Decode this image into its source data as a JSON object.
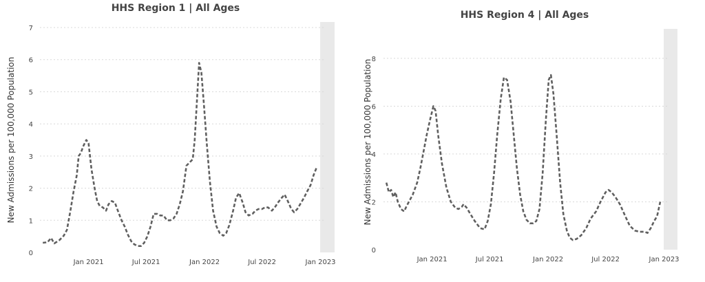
{
  "chart_data": [
    {
      "type": "line",
      "title": "HHS Region 1 | All Ages",
      "ylabel": "New Admissions per 100,000 Population",
      "xlabel": "",
      "x_range": [
        "2020-08-01",
        "2023-01-15"
      ],
      "ylim": [
        0,
        7
      ],
      "y_ticks": [
        0,
        1,
        2,
        3,
        4,
        5,
        6,
        7
      ],
      "x_ticks": [
        {
          "date": "2021-01-01",
          "label": "Jan 2021"
        },
        {
          "date": "2021-07-01",
          "label": "Jul 2021"
        },
        {
          "date": "2022-01-01",
          "label": "Jan 2022"
        },
        {
          "date": "2022-07-01",
          "label": "Jul 2022"
        },
        {
          "date": "2023-01-01",
          "label": "Jan 2023"
        }
      ],
      "grid": true,
      "shaded_region": [
        "2022-12-31",
        "2023-01-15"
      ],
      "series": [
        {
          "color": "#5f5f5f",
          "points": [
            [
              "2020-08-10",
              0.3
            ],
            [
              "2020-08-25",
              0.32
            ],
            [
              "2020-09-05",
              0.45
            ],
            [
              "2020-09-15",
              0.28
            ],
            [
              "2020-10-01",
              0.38
            ],
            [
              "2020-10-15",
              0.52
            ],
            [
              "2020-10-25",
              0.7
            ],
            [
              "2020-11-05",
              1.3
            ],
            [
              "2020-11-15",
              1.9
            ],
            [
              "2020-11-25",
              2.4
            ],
            [
              "2020-12-01",
              3.0
            ],
            [
              "2020-12-08",
              3.1
            ],
            [
              "2020-12-15",
              3.3
            ],
            [
              "2020-12-25",
              3.5
            ],
            [
              "2021-01-01",
              3.4
            ],
            [
              "2021-01-10",
              2.6
            ],
            [
              "2021-01-20",
              2.0
            ],
            [
              "2021-01-28",
              1.6
            ],
            [
              "2021-02-05",
              1.45
            ],
            [
              "2021-02-15",
              1.4
            ],
            [
              "2021-02-25",
              1.3
            ],
            [
              "2021-03-05",
              1.5
            ],
            [
              "2021-03-15",
              1.6
            ],
            [
              "2021-03-25",
              1.55
            ],
            [
              "2021-04-05",
              1.25
            ],
            [
              "2021-04-15",
              1.0
            ],
            [
              "2021-04-25",
              0.8
            ],
            [
              "2021-05-05",
              0.55
            ],
            [
              "2021-05-15",
              0.35
            ],
            [
              "2021-05-25",
              0.25
            ],
            [
              "2021-06-05",
              0.2
            ],
            [
              "2021-06-15",
              0.2
            ],
            [
              "2021-06-25",
              0.3
            ],
            [
              "2021-07-05",
              0.5
            ],
            [
              "2021-07-15",
              0.8
            ],
            [
              "2021-07-25",
              1.2
            ],
            [
              "2021-08-05",
              1.2
            ],
            [
              "2021-08-15",
              1.15
            ],
            [
              "2021-08-25",
              1.15
            ],
            [
              "2021-09-05",
              1.0
            ],
            [
              "2021-09-15",
              1.0
            ],
            [
              "2021-09-25",
              1.05
            ],
            [
              "2021-10-05",
              1.2
            ],
            [
              "2021-10-15",
              1.5
            ],
            [
              "2021-10-25",
              1.9
            ],
            [
              "2021-11-05",
              2.7
            ],
            [
              "2021-11-15",
              2.8
            ],
            [
              "2021-11-25",
              2.9
            ],
            [
              "2021-12-01",
              3.5
            ],
            [
              "2021-12-08",
              4.7
            ],
            [
              "2021-12-15",
              5.9
            ],
            [
              "2021-12-22",
              5.6
            ],
            [
              "2021-12-30",
              4.6
            ],
            [
              "2022-01-08",
              3.4
            ],
            [
              "2022-01-18",
              2.2
            ],
            [
              "2022-01-28",
              1.3
            ],
            [
              "2022-02-08",
              0.8
            ],
            [
              "2022-02-18",
              0.6
            ],
            [
              "2022-03-01",
              0.52
            ],
            [
              "2022-03-10",
              0.6
            ],
            [
              "2022-03-20",
              0.85
            ],
            [
              "2022-04-01",
              1.3
            ],
            [
              "2022-04-10",
              1.7
            ],
            [
              "2022-04-20",
              1.85
            ],
            [
              "2022-05-01",
              1.55
            ],
            [
              "2022-05-10",
              1.25
            ],
            [
              "2022-05-20",
              1.15
            ],
            [
              "2022-06-01",
              1.2
            ],
            [
              "2022-06-10",
              1.3
            ],
            [
              "2022-06-20",
              1.35
            ],
            [
              "2022-07-01",
              1.35
            ],
            [
              "2022-07-10",
              1.4
            ],
            [
              "2022-07-20",
              1.4
            ],
            [
              "2022-08-01",
              1.3
            ],
            [
              "2022-08-10",
              1.4
            ],
            [
              "2022-08-20",
              1.55
            ],
            [
              "2022-09-01",
              1.7
            ],
            [
              "2022-09-10",
              1.8
            ],
            [
              "2022-09-20",
              1.6
            ],
            [
              "2022-10-01",
              1.35
            ],
            [
              "2022-10-10",
              1.25
            ],
            [
              "2022-10-20",
              1.35
            ],
            [
              "2022-11-01",
              1.55
            ],
            [
              "2022-11-10",
              1.7
            ],
            [
              "2022-11-20",
              1.9
            ],
            [
              "2022-12-01",
              2.1
            ],
            [
              "2022-12-10",
              2.4
            ],
            [
              "2022-12-20",
              2.65
            ]
          ]
        }
      ]
    },
    {
      "type": "line",
      "title": "HHS Region 4 | All Ages",
      "ylabel": "New Admissions per 100,000 Population",
      "xlabel": "",
      "x_range": [
        "2020-08-01",
        "2023-01-15"
      ],
      "ylim": [
        0,
        9
      ],
      "y_ticks": [
        0,
        2,
        4,
        6,
        8
      ],
      "x_ticks": [
        {
          "date": "2021-01-01",
          "label": "Jan 2021"
        },
        {
          "date": "2021-07-01",
          "label": "Jul 2021"
        },
        {
          "date": "2022-01-01",
          "label": "Jan 2022"
        },
        {
          "date": "2022-07-01",
          "label": "Jul 2022"
        },
        {
          "date": "2023-01-01",
          "label": "Jan 2023"
        }
      ],
      "grid": true,
      "shaded_region": [
        "2022-12-31",
        "2023-01-15"
      ],
      "series": [
        {
          "color": "#5f5f5f",
          "points": [
            [
              "2020-08-10",
              2.8
            ],
            [
              "2020-08-18",
              2.4
            ],
            [
              "2020-08-25",
              2.5
            ],
            [
              "2020-09-01",
              2.2
            ],
            [
              "2020-09-08",
              2.4
            ],
            [
              "2020-09-15",
              2.0
            ],
            [
              "2020-09-25",
              1.7
            ],
            [
              "2020-10-05",
              1.6
            ],
            [
              "2020-10-12",
              1.8
            ],
            [
              "2020-10-20",
              2.0
            ],
            [
              "2020-11-01",
              2.3
            ],
            [
              "2020-11-15",
              2.8
            ],
            [
              "2020-11-25",
              3.4
            ],
            [
              "2020-12-05",
              4.1
            ],
            [
              "2020-12-15",
              4.8
            ],
            [
              "2020-12-25",
              5.4
            ],
            [
              "2021-01-05",
              6.0
            ],
            [
              "2021-01-12",
              5.8
            ],
            [
              "2021-01-20",
              4.8
            ],
            [
              "2021-02-01",
              3.6
            ],
            [
              "2021-02-15",
              2.6
            ],
            [
              "2021-03-01",
              2.0
            ],
            [
              "2021-03-15",
              1.75
            ],
            [
              "2021-03-25",
              1.7
            ],
            [
              "2021-04-05",
              1.8
            ],
            [
              "2021-04-10",
              1.9
            ],
            [
              "2021-04-20",
              1.75
            ],
            [
              "2021-05-01",
              1.5
            ],
            [
              "2021-05-15",
              1.2
            ],
            [
              "2021-06-01",
              0.9
            ],
            [
              "2021-06-15",
              0.85
            ],
            [
              "2021-06-25",
              1.2
            ],
            [
              "2021-07-05",
              1.9
            ],
            [
              "2021-07-15",
              3.2
            ],
            [
              "2021-07-25",
              4.8
            ],
            [
              "2021-08-05",
              6.3
            ],
            [
              "2021-08-15",
              7.2
            ],
            [
              "2021-08-25",
              7.1
            ],
            [
              "2021-09-05",
              6.2
            ],
            [
              "2021-09-15",
              4.8
            ],
            [
              "2021-09-25",
              3.4
            ],
            [
              "2021-10-05",
              2.3
            ],
            [
              "2021-10-15",
              1.6
            ],
            [
              "2021-10-25",
              1.25
            ],
            [
              "2021-11-05",
              1.1
            ],
            [
              "2021-11-15",
              1.1
            ],
            [
              "2021-11-25",
              1.2
            ],
            [
              "2021-12-05",
              1.7
            ],
            [
              "2021-12-15",
              3.2
            ],
            [
              "2021-12-25",
              5.4
            ],
            [
              "2022-01-03",
              7.1
            ],
            [
              "2022-01-10",
              7.3
            ],
            [
              "2022-01-18",
              6.5
            ],
            [
              "2022-01-28",
              4.8
            ],
            [
              "2022-02-08",
              2.8
            ],
            [
              "2022-02-18",
              1.5
            ],
            [
              "2022-03-01",
              0.8
            ],
            [
              "2022-03-10",
              0.5
            ],
            [
              "2022-03-20",
              0.4
            ],
            [
              "2022-04-01",
              0.45
            ],
            [
              "2022-04-15",
              0.6
            ],
            [
              "2022-05-01",
              0.9
            ],
            [
              "2022-05-15",
              1.3
            ],
            [
              "2022-06-01",
              1.6
            ],
            [
              "2022-06-15",
              2.0
            ],
            [
              "2022-07-01",
              2.4
            ],
            [
              "2022-07-10",
              2.5
            ],
            [
              "2022-07-20",
              2.4
            ],
            [
              "2022-08-01",
              2.2
            ],
            [
              "2022-08-15",
              1.9
            ],
            [
              "2022-09-01",
              1.4
            ],
            [
              "2022-09-15",
              1.0
            ],
            [
              "2022-10-01",
              0.8
            ],
            [
              "2022-10-15",
              0.75
            ],
            [
              "2022-11-01",
              0.75
            ],
            [
              "2022-11-10",
              0.7
            ],
            [
              "2022-11-20",
              0.9
            ],
            [
              "2022-12-01",
              1.2
            ],
            [
              "2022-12-10",
              1.4
            ],
            [
              "2022-12-20",
              2.0
            ]
          ]
        }
      ]
    }
  ]
}
